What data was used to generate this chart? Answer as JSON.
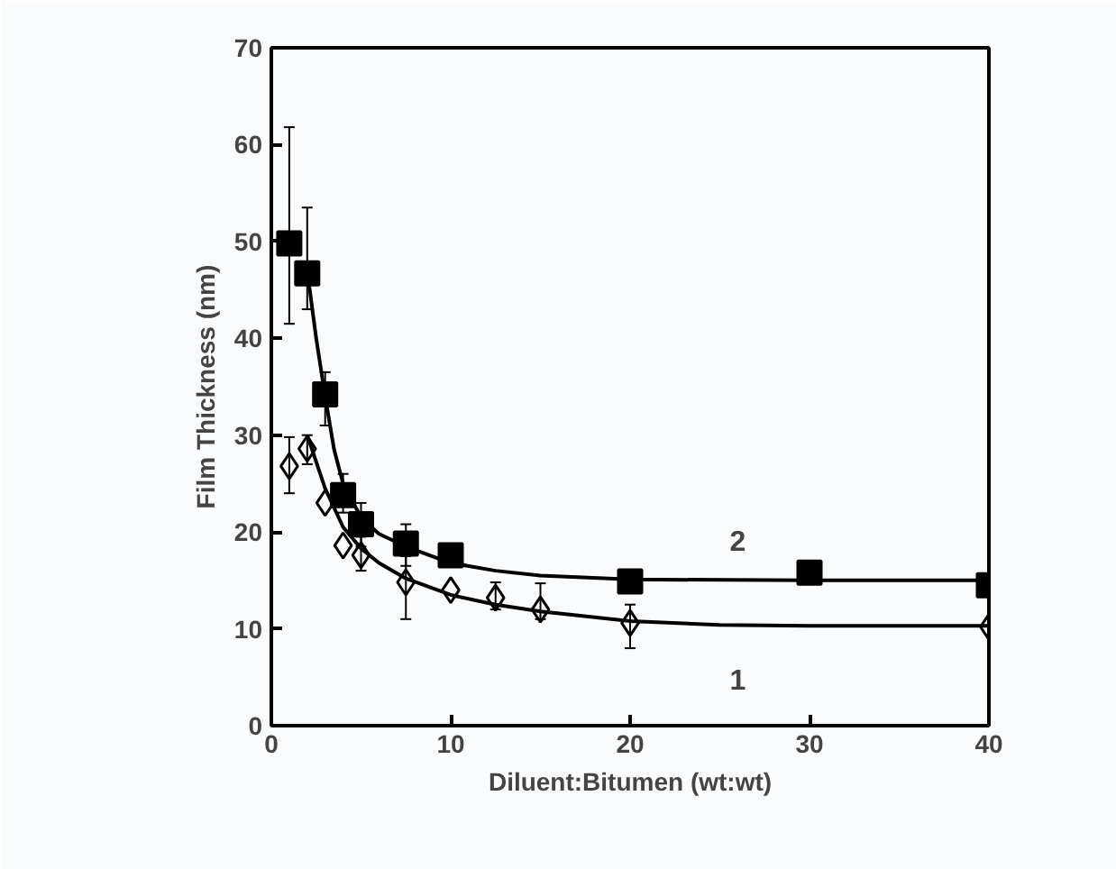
{
  "chart_data": {
    "type": "scatter",
    "xlabel": "Diluent:Bitumen (wt:wt)",
    "ylabel": "Film Thickness (nm)",
    "xlim": [
      0,
      40
    ],
    "xticks": [
      0,
      10,
      20,
      30,
      40
    ],
    "ylim": [
      0,
      70
    ],
    "yticks": [
      0,
      10,
      20,
      30,
      40,
      50,
      60,
      70
    ],
    "grid": false,
    "series": [
      {
        "marker": "square",
        "color": "#000000",
        "x": [
          1,
          2,
          3,
          4,
          5,
          7.5,
          10,
          20,
          30,
          40
        ],
        "values": [
          49.8,
          46.7,
          34.2,
          23.8,
          20.8,
          18.8,
          17.6,
          14.9,
          15.8,
          14.5
        ],
        "errors": [
          [
            41.5,
            61.8
          ],
          [
            43,
            53.5
          ],
          [
            31,
            36.5
          ],
          [
            22,
            26
          ],
          [
            18.5,
            23
          ],
          [
            16.5,
            20.8
          ],
          null,
          null,
          null,
          null
        ]
      },
      {
        "marker": "diamond",
        "color": "#000000",
        "x": [
          1,
          2,
          3,
          4,
          5,
          7.5,
          10,
          12.5,
          15,
          20,
          40
        ],
        "values": [
          26.8,
          28.6,
          23,
          18.6,
          17.6,
          14.8,
          14,
          13.2,
          12,
          10.6,
          10.2
        ],
        "errors": [
          [
            24,
            29.8
          ],
          [
            27,
            30
          ],
          null,
          null,
          [
            16,
            19.5
          ],
          [
            11,
            17.5
          ],
          null,
          [
            12,
            14.8
          ],
          [
            11,
            14.7
          ],
          [
            8,
            12.5
          ],
          null
        ]
      },
      {
        "type": "line",
        "name": "2",
        "color": "#000000",
        "x": [
          2,
          2.5,
          3,
          3.5,
          4,
          5,
          6,
          7.5,
          10,
          12.5,
          15,
          20,
          30,
          40
        ],
        "values": [
          47,
          40,
          34,
          28.5,
          25,
          21.5,
          19.8,
          18.5,
          16.8,
          16,
          15.5,
          15.1,
          15,
          15
        ]
      },
      {
        "type": "line",
        "name": "1",
        "color": "#000000",
        "x": [
          2,
          3,
          4,
          5,
          6,
          7.5,
          10,
          12.5,
          15,
          20,
          25,
          30,
          40
        ],
        "values": [
          30,
          24.5,
          20.5,
          18.3,
          16.8,
          15.2,
          13.5,
          12.5,
          11.8,
          10.8,
          10.4,
          10.3,
          10.3
        ]
      }
    ]
  }
}
